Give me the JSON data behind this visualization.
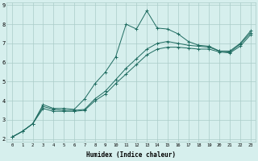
{
  "xlabel": "Humidex (Indice chaleur)",
  "ylabel": "",
  "x_data": [
    0,
    1,
    2,
    3,
    4,
    5,
    6,
    7,
    8,
    9,
    10,
    11,
    12,
    13,
    14,
    15,
    16,
    17,
    18,
    19,
    20,
    21,
    22,
    23
  ],
  "line1": [
    2.1,
    2.4,
    2.8,
    3.8,
    3.6,
    3.6,
    3.55,
    4.1,
    4.9,
    5.5,
    6.3,
    8.0,
    7.75,
    8.7,
    7.8,
    7.75,
    7.5,
    7.1,
    6.9,
    6.85,
    6.6,
    6.6,
    7.0,
    7.65
  ],
  "line2": [
    2.1,
    2.4,
    2.8,
    3.7,
    3.55,
    3.5,
    3.5,
    3.55,
    4.1,
    4.5,
    5.1,
    5.7,
    6.2,
    6.7,
    7.0,
    7.1,
    7.0,
    6.9,
    6.85,
    6.8,
    6.6,
    6.55,
    6.95,
    7.55
  ],
  "line3": [
    2.1,
    2.4,
    2.8,
    3.6,
    3.45,
    3.45,
    3.45,
    3.5,
    4.0,
    4.35,
    4.9,
    5.4,
    5.9,
    6.4,
    6.7,
    6.8,
    6.8,
    6.75,
    6.7,
    6.7,
    6.55,
    6.5,
    6.85,
    7.45
  ],
  "line_color": "#1e6b60",
  "bg_color": "#d6efed",
  "grid_color": "#aaccc8",
  "ylim": [
    2,
    9
  ],
  "xlim": [
    -0.5,
    23.5
  ],
  "yticks": [
    2,
    3,
    4,
    5,
    6,
    7,
    8,
    9
  ],
  "xticks": [
    0,
    1,
    2,
    3,
    4,
    5,
    6,
    7,
    8,
    9,
    10,
    11,
    12,
    13,
    14,
    15,
    16,
    17,
    18,
    19,
    20,
    21,
    22,
    23
  ]
}
